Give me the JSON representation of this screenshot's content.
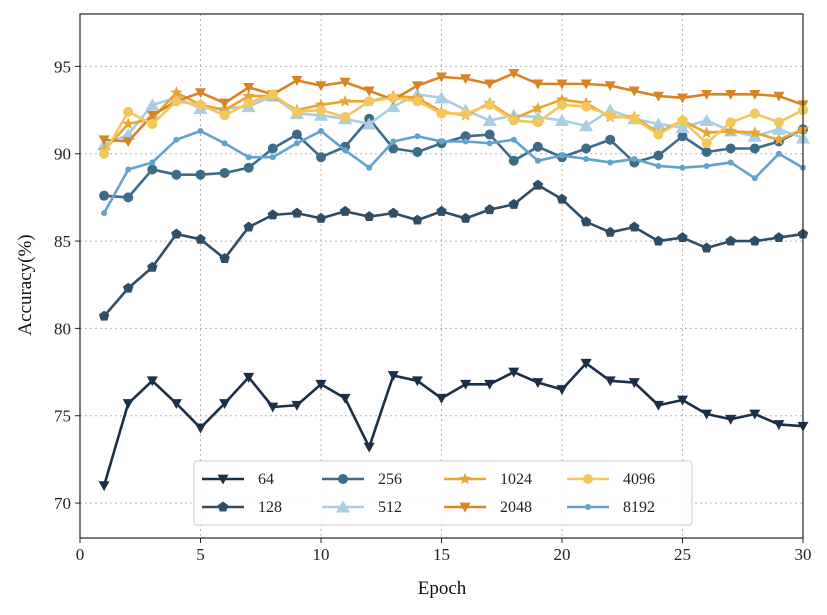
{
  "chart_data": {
    "type": "line",
    "title": "",
    "xlabel": "Epoch",
    "ylabel": "Accuracy(%)",
    "xlim": [
      0,
      30
    ],
    "ylim": [
      68,
      98
    ],
    "xticks": [
      0,
      5,
      10,
      15,
      20,
      25,
      30
    ],
    "yticks": [
      70,
      75,
      80,
      85,
      90,
      95
    ],
    "grid": true,
    "legend_position": "lower-center",
    "x": [
      1,
      2,
      3,
      4,
      5,
      6,
      7,
      8,
      9,
      10,
      11,
      12,
      13,
      14,
      15,
      16,
      17,
      18,
      19,
      20,
      21,
      22,
      23,
      24,
      25,
      26,
      27,
      28,
      29,
      30
    ],
    "series": [
      {
        "name": "64",
        "color": "#1b2f47",
        "marker": "triangle-down",
        "values": [
          71.0,
          75.7,
          77.0,
          75.7,
          74.3,
          75.7,
          77.2,
          75.5,
          75.6,
          76.8,
          76.0,
          73.2,
          77.3,
          77.0,
          76.0,
          76.8,
          76.8,
          77.5,
          76.9,
          76.5,
          78.0,
          77.0,
          76.9,
          75.6,
          75.9,
          75.1,
          74.8,
          75.1,
          74.5,
          74.4
        ]
      },
      {
        "name": "128",
        "color": "#2e4d66",
        "marker": "pentagon",
        "values": [
          80.7,
          82.3,
          83.5,
          85.4,
          85.1,
          84.0,
          85.8,
          86.5,
          86.6,
          86.3,
          86.7,
          86.4,
          86.6,
          86.2,
          86.7,
          86.3,
          86.8,
          87.1,
          88.2,
          87.4,
          86.1,
          85.5,
          85.8,
          85.0,
          85.2,
          84.6,
          85.0,
          85.0,
          85.2,
          85.4
        ]
      },
      {
        "name": "256",
        "color": "#3d6b8a",
        "marker": "circle",
        "values": [
          87.6,
          87.5,
          89.1,
          88.8,
          88.8,
          88.9,
          89.2,
          90.3,
          91.1,
          89.8,
          90.4,
          92.0,
          90.3,
          90.1,
          90.6,
          91.0,
          91.1,
          89.6,
          90.4,
          89.8,
          90.3,
          90.8,
          89.5,
          89.9,
          91.0,
          90.1,
          90.3,
          90.3,
          90.7,
          91.4
        ]
      },
      {
        "name": "512",
        "color": "#a9cde3",
        "marker": "triangle-up",
        "values": [
          90.5,
          91.1,
          92.8,
          93.2,
          92.6,
          92.6,
          92.7,
          93.3,
          92.3,
          92.2,
          92.0,
          91.7,
          92.7,
          93.4,
          93.2,
          92.5,
          91.9,
          92.2,
          92.1,
          91.9,
          91.6,
          92.5,
          92.0,
          91.7,
          91.5,
          91.9,
          91.3,
          91.0,
          91.4,
          90.9
        ]
      },
      {
        "name": "1024",
        "color": "#e8a530",
        "marker": "star",
        "values": [
          90.2,
          91.7,
          92.0,
          93.5,
          92.8,
          92.5,
          93.3,
          93.3,
          92.5,
          92.8,
          93.0,
          93.0,
          93.3,
          93.2,
          92.4,
          92.2,
          92.9,
          92.0,
          92.6,
          93.1,
          92.9,
          92.1,
          92.1,
          91.2,
          91.9,
          91.2,
          91.3,
          91.2,
          90.8,
          91.4
        ]
      },
      {
        "name": "2048",
        "color": "#d98323",
        "marker": "triangle-down",
        "values": [
          90.8,
          90.7,
          92.2,
          93.0,
          93.5,
          92.9,
          93.8,
          93.4,
          94.2,
          93.9,
          94.1,
          93.6,
          93.1,
          93.9,
          94.4,
          94.3,
          94.0,
          94.6,
          94.0,
          94.0,
          94.0,
          93.9,
          93.6,
          93.3,
          93.2,
          93.4,
          93.4,
          93.4,
          93.3,
          92.8
        ]
      },
      {
        "name": "4096",
        "color": "#f2c75e",
        "marker": "circle",
        "values": [
          90.0,
          92.4,
          91.7,
          93.0,
          92.8,
          92.2,
          92.9,
          93.4,
          92.4,
          92.5,
          92.1,
          93.0,
          93.2,
          93.0,
          92.3,
          92.3,
          92.8,
          91.9,
          91.8,
          92.8,
          92.7,
          92.2,
          92.0,
          91.1,
          91.9,
          90.6,
          91.8,
          92.3,
          91.8,
          92.5
        ]
      },
      {
        "name": "8192",
        "color": "#62a3cc",
        "marker": "small-circle",
        "values": [
          86.6,
          89.1,
          89.5,
          90.8,
          91.3,
          90.6,
          89.8,
          89.8,
          90.6,
          91.3,
          90.2,
          89.2,
          90.7,
          91.0,
          90.7,
          90.7,
          90.6,
          90.8,
          89.6,
          89.9,
          89.7,
          89.5,
          89.7,
          89.3,
          89.2,
          89.3,
          89.5,
          88.6,
          90.0,
          89.2
        ]
      }
    ]
  }
}
